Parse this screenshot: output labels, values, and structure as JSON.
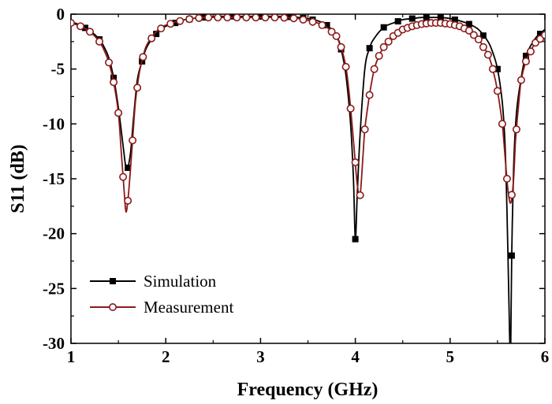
{
  "chart_data": {
    "type": "line",
    "title": "",
    "xlabel": "Frequency (GHz)",
    "ylabel": "S11 (dB)",
    "xlim": [
      1,
      6
    ],
    "ylim": [
      -30,
      0
    ],
    "xticks": [
      1,
      2,
      3,
      4,
      5,
      6
    ],
    "yticks": [
      0,
      -5,
      -10,
      -15,
      -20,
      -25,
      -30
    ],
    "grid": false,
    "legend_position": "bottom-left",
    "series": [
      {
        "name": "Simulation",
        "color": "#000000",
        "marker": "filled-square",
        "x": [
          1.0,
          1.1,
          1.2,
          1.3,
          1.35,
          1.4,
          1.45,
          1.5,
          1.55,
          1.58,
          1.6,
          1.63,
          1.66,
          1.7,
          1.75,
          1.8,
          1.9,
          2.0,
          2.2,
          2.4,
          2.6,
          2.8,
          3.0,
          3.2,
          3.4,
          3.5,
          3.6,
          3.7,
          3.8,
          3.85,
          3.9,
          3.95,
          3.98,
          4.0,
          4.02,
          4.05,
          4.1,
          4.15,
          4.2,
          4.3,
          4.4,
          4.5,
          4.6,
          4.7,
          4.8,
          4.9,
          5.0,
          5.1,
          5.2,
          5.3,
          5.4,
          5.45,
          5.5,
          5.55,
          5.58,
          5.6,
          5.62,
          5.63,
          5.64,
          5.65,
          5.67,
          5.7,
          5.75,
          5.8,
          5.9,
          6.0
        ],
        "y": [
          -0.7,
          -1.0,
          -1.5,
          -2.3,
          -3.0,
          -4.0,
          -5.8,
          -8.5,
          -12.0,
          -14.0,
          -14.0,
          -12.5,
          -9.5,
          -6.0,
          -4.3,
          -3.0,
          -1.8,
          -1.1,
          -0.5,
          -0.3,
          -0.2,
          -0.2,
          -0.2,
          -0.2,
          -0.3,
          -0.4,
          -0.6,
          -1.0,
          -2.0,
          -3.2,
          -5.5,
          -10.0,
          -15.0,
          -20.5,
          -16.5,
          -11.0,
          -5.0,
          -3.1,
          -2.2,
          -1.2,
          -0.8,
          -0.5,
          -0.4,
          -0.3,
          -0.3,
          -0.3,
          -0.4,
          -0.6,
          -0.9,
          -1.4,
          -2.5,
          -3.5,
          -5.0,
          -8.0,
          -12.0,
          -18.0,
          -26.0,
          -30.0,
          -30.0,
          -22.0,
          -14.0,
          -9.0,
          -5.8,
          -3.8,
          -2.2,
          -1.4
        ],
        "marker_x": [
          1.15,
          1.3,
          1.45,
          1.6,
          1.75,
          1.9,
          2.1,
          2.25,
          2.4,
          2.55,
          2.7,
          2.85,
          3.0,
          3.15,
          3.3,
          3.45,
          3.55,
          3.7,
          3.85,
          4.0,
          4.15,
          4.3,
          4.45,
          4.6,
          4.75,
          4.9,
          5.05,
          5.2,
          5.35,
          5.5,
          5.65,
          5.8,
          5.95
        ]
      },
      {
        "name": "Measurement",
        "color": "#8b1a1a",
        "marker": "open-circle",
        "x": [
          1.0,
          1.1,
          1.2,
          1.3,
          1.35,
          1.4,
          1.45,
          1.5,
          1.53,
          1.56,
          1.58,
          1.6,
          1.62,
          1.65,
          1.68,
          1.72,
          1.76,
          1.8,
          1.9,
          2.0,
          2.2,
          2.4,
          2.6,
          2.8,
          3.0,
          3.2,
          3.4,
          3.6,
          3.7,
          3.8,
          3.85,
          3.9,
          3.93,
          3.96,
          3.99,
          4.02,
          4.05,
          4.08,
          4.1,
          4.13,
          4.16,
          4.2,
          4.25,
          4.3,
          4.4,
          4.5,
          4.6,
          4.7,
          4.8,
          4.9,
          5.0,
          5.1,
          5.2,
          5.3,
          5.4,
          5.45,
          5.5,
          5.55,
          5.58,
          5.61,
          5.64,
          5.67,
          5.69,
          5.72,
          5.75,
          5.8,
          5.85,
          5.9,
          6.0
        ],
        "y": [
          -0.8,
          -1.1,
          -1.6,
          -2.5,
          -3.3,
          -4.4,
          -6.2,
          -9.0,
          -12.5,
          -16.0,
          -18.0,
          -17.0,
          -15.0,
          -11.5,
          -8.0,
          -5.4,
          -3.9,
          -2.8,
          -1.6,
          -1.0,
          -0.5,
          -0.3,
          -0.3,
          -0.3,
          -0.3,
          -0.3,
          -0.4,
          -0.8,
          -1.2,
          -2.0,
          -3.0,
          -4.8,
          -6.8,
          -9.5,
          -12.5,
          -15.5,
          -16.5,
          -13.0,
          -10.5,
          -8.5,
          -6.8,
          -5.0,
          -3.8,
          -3.0,
          -2.0,
          -1.4,
          -1.1,
          -0.9,
          -0.8,
          -0.8,
          -0.9,
          -1.1,
          -1.5,
          -2.3,
          -3.7,
          -5.0,
          -7.0,
          -10.0,
          -13.0,
          -16.0,
          -17.2,
          -15.0,
          -11.5,
          -8.5,
          -6.0,
          -4.3,
          -3.4,
          -2.6,
          -1.9
        ],
        "marker_x": [
          1.0,
          1.1,
          1.2,
          1.3,
          1.4,
          1.45,
          1.5,
          1.55,
          1.6,
          1.65,
          1.7,
          1.76,
          1.85,
          1.95,
          2.05,
          2.15,
          2.25,
          2.35,
          2.45,
          2.55,
          2.65,
          2.75,
          2.85,
          2.95,
          3.05,
          3.15,
          3.25,
          3.35,
          3.45,
          3.55,
          3.65,
          3.75,
          3.8,
          3.85,
          3.9,
          3.95,
          4.0,
          4.05,
          4.1,
          4.15,
          4.2,
          4.25,
          4.3,
          4.35,
          4.4,
          4.45,
          4.5,
          4.55,
          4.6,
          4.65,
          4.7,
          4.75,
          4.8,
          4.85,
          4.9,
          4.95,
          5.0,
          5.05,
          5.1,
          5.15,
          5.2,
          5.25,
          5.3,
          5.35,
          5.4,
          5.45,
          5.5,
          5.55,
          5.6,
          5.65,
          5.7,
          5.75,
          5.8,
          5.85,
          5.9,
          5.95,
          6.0
        ]
      }
    ]
  }
}
